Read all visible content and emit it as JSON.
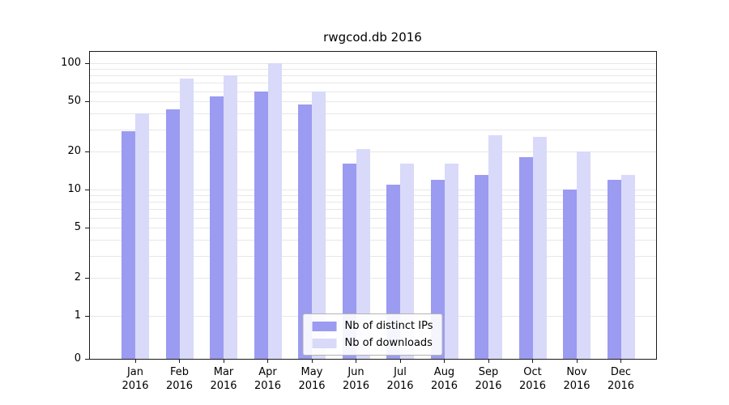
{
  "figure": {
    "title": "rwgcod.db 2016"
  },
  "chart_data": {
    "type": "bar",
    "title": "rwgcod.db 2016",
    "x_categories_month": [
      "Jan",
      "Feb",
      "Mar",
      "Apr",
      "May",
      "Jun",
      "Jul",
      "Aug",
      "Sep",
      "Oct",
      "Nov",
      "Dec"
    ],
    "x_year": "2016",
    "series": [
      {
        "name": "Nb of distinct IPs",
        "color": "#9b9bf1",
        "values": [
          29,
          43,
          55,
          60,
          47,
          16,
          11,
          12,
          13,
          18,
          10,
          12
        ]
      },
      {
        "name": "Nb of downloads",
        "color": "#d9d9fa",
        "values": [
          40,
          76,
          80,
          100,
          60,
          21,
          16,
          16,
          27,
          26,
          20,
          13
        ]
      }
    ],
    "yscale": "symlog",
    "yticks": [
      0,
      1,
      2,
      5,
      10,
      20,
      50,
      100
    ],
    "ylim": [
      0,
      125
    ],
    "grid": true,
    "legend_position": "lower center"
  }
}
